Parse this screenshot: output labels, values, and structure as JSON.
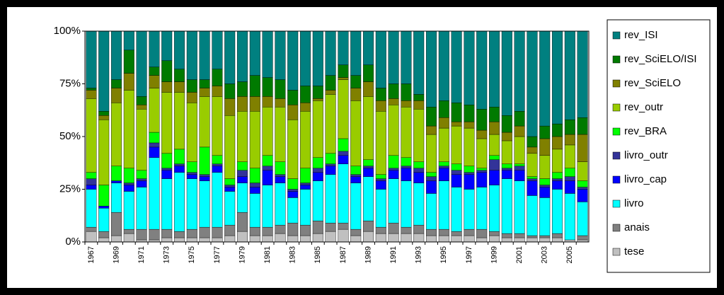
{
  "chart_data": {
    "type": "stacked_bar_100",
    "categories": [
      "1967",
      null,
      "1969",
      null,
      "1971",
      null,
      "1973",
      null,
      "1975",
      null,
      "1977",
      null,
      "1979",
      null,
      "1981",
      null,
      "1983",
      null,
      "1985",
      null,
      "1987",
      null,
      "1989",
      null,
      "1991",
      null,
      "1993",
      null,
      "1995",
      null,
      "1997",
      null,
      "1999",
      null,
      "2001",
      null,
      "2003",
      null,
      "2005",
      null
    ],
    "ylim": [
      0,
      100
    ],
    "yticks": [
      {
        "value": 0,
        "label": "0%"
      },
      {
        "value": 25,
        "label": "25%"
      },
      {
        "value": 50,
        "label": "50%"
      },
      {
        "value": 75,
        "label": "75%"
      },
      {
        "value": 100,
        "label": "100%"
      }
    ],
    "series": [
      {
        "name": "tese",
        "color": "#c0c0c0",
        "values": [
          5,
          2,
          3,
          4,
          1,
          1,
          2,
          2,
          2,
          2,
          2,
          3,
          5,
          3,
          3,
          4,
          3,
          3,
          4,
          5,
          6,
          3,
          5,
          4,
          4,
          4,
          4,
          3,
          3,
          3,
          3,
          2,
          3,
          2,
          2,
          2,
          2,
          2,
          1,
          1
        ]
      },
      {
        "name": "anais",
        "color": "#808080",
        "values": [
          2,
          3,
          11,
          2,
          5,
          5,
          4,
          3,
          4,
          5,
          5,
          5,
          9,
          4,
          4,
          4,
          6,
          5,
          6,
          4,
          3,
          3,
          5,
          3,
          5,
          3,
          4,
          3,
          3,
          2,
          3,
          4,
          2,
          2,
          2,
          1,
          1,
          2,
          0,
          2
        ]
      },
      {
        "name": "livro",
        "color": "#00ffff",
        "values": [
          18,
          11,
          14,
          18,
          20,
          34,
          24,
          28,
          24,
          22,
          26,
          16,
          14,
          16,
          20,
          20,
          12,
          17,
          19,
          23,
          28,
          22,
          21,
          18,
          21,
          22,
          20,
          17,
          23,
          21,
          19,
          20,
          22,
          26,
          25,
          19,
          18,
          21,
          22,
          16
        ]
      },
      {
        "name": "livro_cap",
        "color": "#0000ff",
        "values": [
          2,
          1,
          1,
          3,
          3,
          5,
          4,
          3,
          2,
          2,
          3,
          2,
          3,
          3,
          7,
          3,
          3,
          2,
          4,
          4,
          4,
          3,
          4,
          4,
          4,
          6,
          5,
          6,
          6,
          6,
          7,
          7,
          7,
          4,
          5,
          7,
          5,
          4,
          6,
          6
        ]
      },
      {
        "name": "livro_outr",
        "color": "#333399",
        "values": [
          3,
          0,
          0,
          1,
          1,
          2,
          1,
          1,
          1,
          1,
          1,
          1,
          3,
          2,
          2,
          1,
          1,
          1,
          2,
          1,
          2,
          1,
          1,
          1,
          1,
          1,
          2,
          2,
          1,
          2,
          1,
          1,
          5,
          1,
          2,
          1,
          1,
          1,
          2,
          1
        ]
      },
      {
        "name": "rev_BRA",
        "color": "#00ff00",
        "values": [
          3,
          10,
          7,
          7,
          4,
          5,
          7,
          7,
          5,
          13,
          4,
          3,
          4,
          7,
          5,
          6,
          5,
          7,
          5,
          5,
          6,
          4,
          3,
          2,
          6,
          4,
          3,
          2,
          2,
          3,
          3,
          1,
          2,
          2,
          1,
          1,
          3,
          3,
          4,
          3
        ]
      },
      {
        "name": "rev_outr",
        "color": "#99cc00",
        "values": [
          35,
          31,
          30,
          37,
          29,
          21,
          29,
          27,
          28,
          24,
          28,
          30,
          24,
          27,
          23,
          26,
          28,
          27,
          27,
          28,
          28,
          31,
          30,
          30,
          24,
          24,
          25,
          18,
          16,
          18,
          18,
          14,
          10,
          11,
          13,
          11,
          11,
          11,
          11,
          9
        ]
      },
      {
        "name": "rev_SciELO",
        "color": "#808000",
        "values": [
          4,
          2,
          7,
          8,
          2,
          6,
          5,
          5,
          5,
          4,
          5,
          8,
          7,
          7,
          5,
          4,
          7,
          4,
          1,
          2,
          1,
          6,
          7,
          5,
          3,
          3,
          4,
          4,
          5,
          2,
          3,
          4,
          6,
          4,
          5,
          3,
          8,
          6,
          5,
          13
        ]
      },
      {
        "name": "rev_SciELO/ISI",
        "color": "#007a00",
        "values": [
          1,
          2,
          4,
          11,
          4,
          4,
          10,
          6,
          6,
          4,
          8,
          7,
          7,
          10,
          9,
          9,
          7,
          8,
          6,
          7,
          6,
          6,
          8,
          6,
          7,
          8,
          3,
          9,
          8,
          9,
          8,
          10,
          7,
          8,
          7,
          5,
          6,
          6,
          7,
          8
        ]
      },
      {
        "name": "rev_ISI",
        "color": "#008080",
        "values": [
          27,
          38,
          23,
          9,
          31,
          17,
          14,
          18,
          23,
          23,
          18,
          25,
          24,
          21,
          22,
          23,
          28,
          26,
          26,
          21,
          16,
          21,
          16,
          27,
          25,
          25,
          30,
          36,
          33,
          34,
          35,
          37,
          36,
          40,
          38,
          50,
          45,
          44,
          42,
          41
        ]
      }
    ]
  }
}
